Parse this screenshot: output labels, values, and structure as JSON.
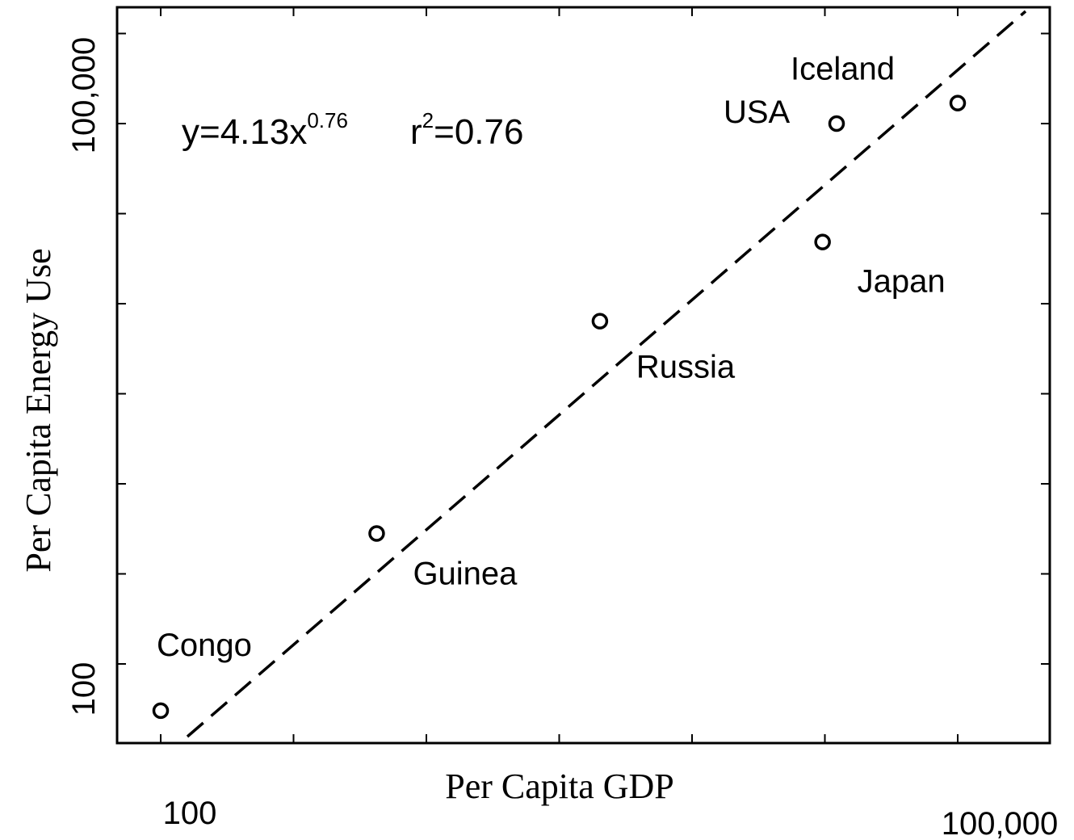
{
  "chart_data": {
    "type": "scatter",
    "title": "",
    "xlabel": "Per Capita GDP",
    "ylabel": "Per Capita Energy Use",
    "x_scale": "log",
    "y_scale": "log",
    "x_tick_labels": [
      "100",
      "100,000"
    ],
    "y_tick_labels": [
      "100",
      "100,000"
    ],
    "equation": "y=4.13x",
    "equation_exponent": "0.76",
    "r2_prefix": "r",
    "r2_sup": "2",
    "r2_value": "=0.76",
    "fit": {
      "coefficient": 4.13,
      "exponent": 0.76,
      "style": "dashed"
    },
    "points": [
      {
        "label": "Congo",
        "x": 100,
        "y": 55
      },
      {
        "label": "Guinea",
        "x": 650,
        "y": 530
      },
      {
        "label": "Russia",
        "x": 4500,
        "y": 8000
      },
      {
        "label": "Japan",
        "x": 31000,
        "y": 22000
      },
      {
        "label": "USA",
        "x": 35000,
        "y": 100000
      },
      {
        "label": "Iceland",
        "x": 100000,
        "y": 130000
      }
    ],
    "grid": false,
    "marker": "open-circle"
  }
}
